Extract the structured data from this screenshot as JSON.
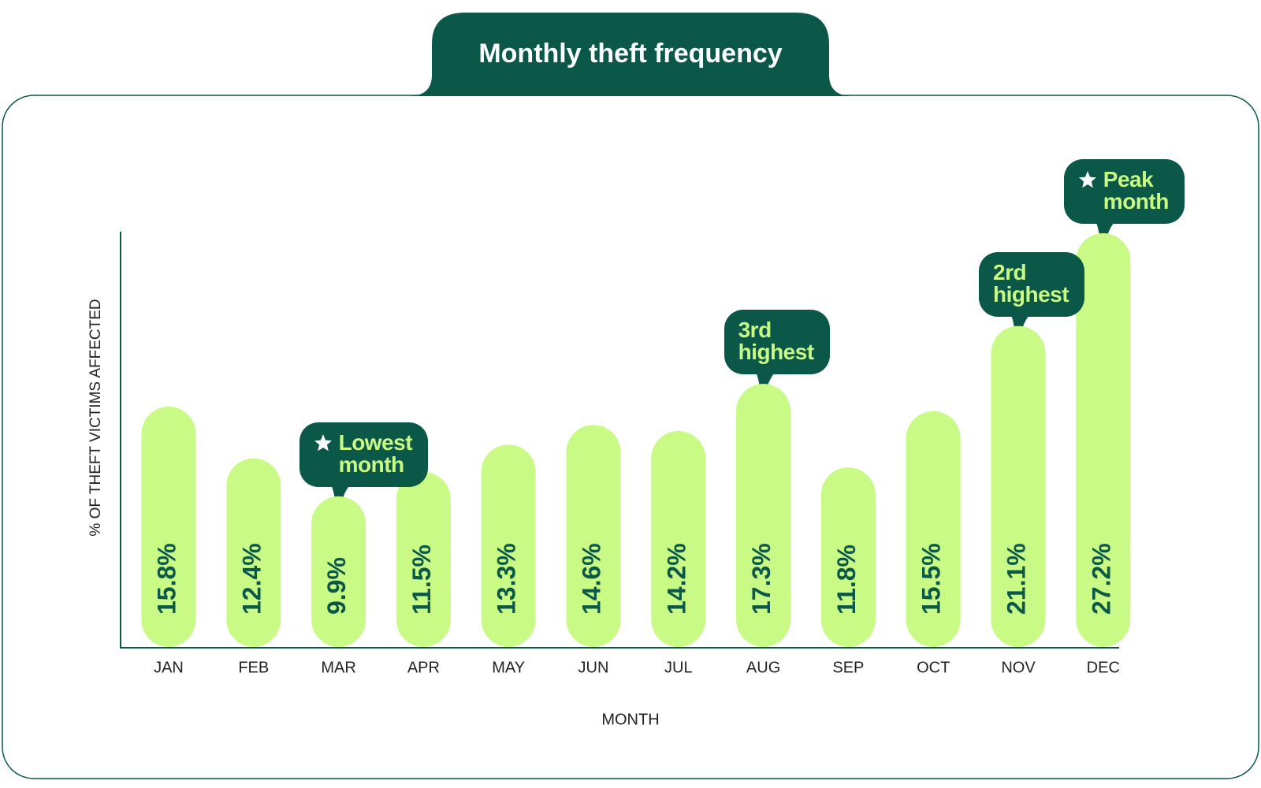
{
  "chart_data": {
    "type": "bar",
    "title": "Monthly theft frequency",
    "x_label": "MONTH",
    "y_label": "% OF THEFT VICTIMS AFFECTED",
    "categories": [
      "JAN",
      "FEB",
      "MAR",
      "APR",
      "MAY",
      "JUN",
      "JUL",
      "AUG",
      "SEP",
      "OCT",
      "NOV",
      "DEC"
    ],
    "values": [
      15.8,
      12.4,
      9.9,
      11.5,
      13.3,
      14.6,
      14.2,
      17.3,
      11.8,
      15.5,
      21.1,
      27.2
    ],
    "value_labels": [
      "15.8%",
      "12.4%",
      "9.9%",
      "11.5%",
      "13.3%",
      "14.6%",
      "14.2%",
      "17.3%",
      "11.8%",
      "15.5%",
      "21.1%",
      "27.2%"
    ],
    "annotations": [
      null,
      null,
      {
        "text": "Lowest month",
        "star": true
      },
      null,
      null,
      null,
      null,
      {
        "text": "3rd highest",
        "star": false
      },
      null,
      null,
      {
        "text": "2rd highest",
        "star": false
      },
      {
        "text": "Peak month",
        "star": true
      }
    ],
    "color": "#c8fa85",
    "label_color": "#0b5849",
    "callout_color": "#0b5849",
    "ylim": [
      0,
      27.2
    ],
    "grid": false
  }
}
